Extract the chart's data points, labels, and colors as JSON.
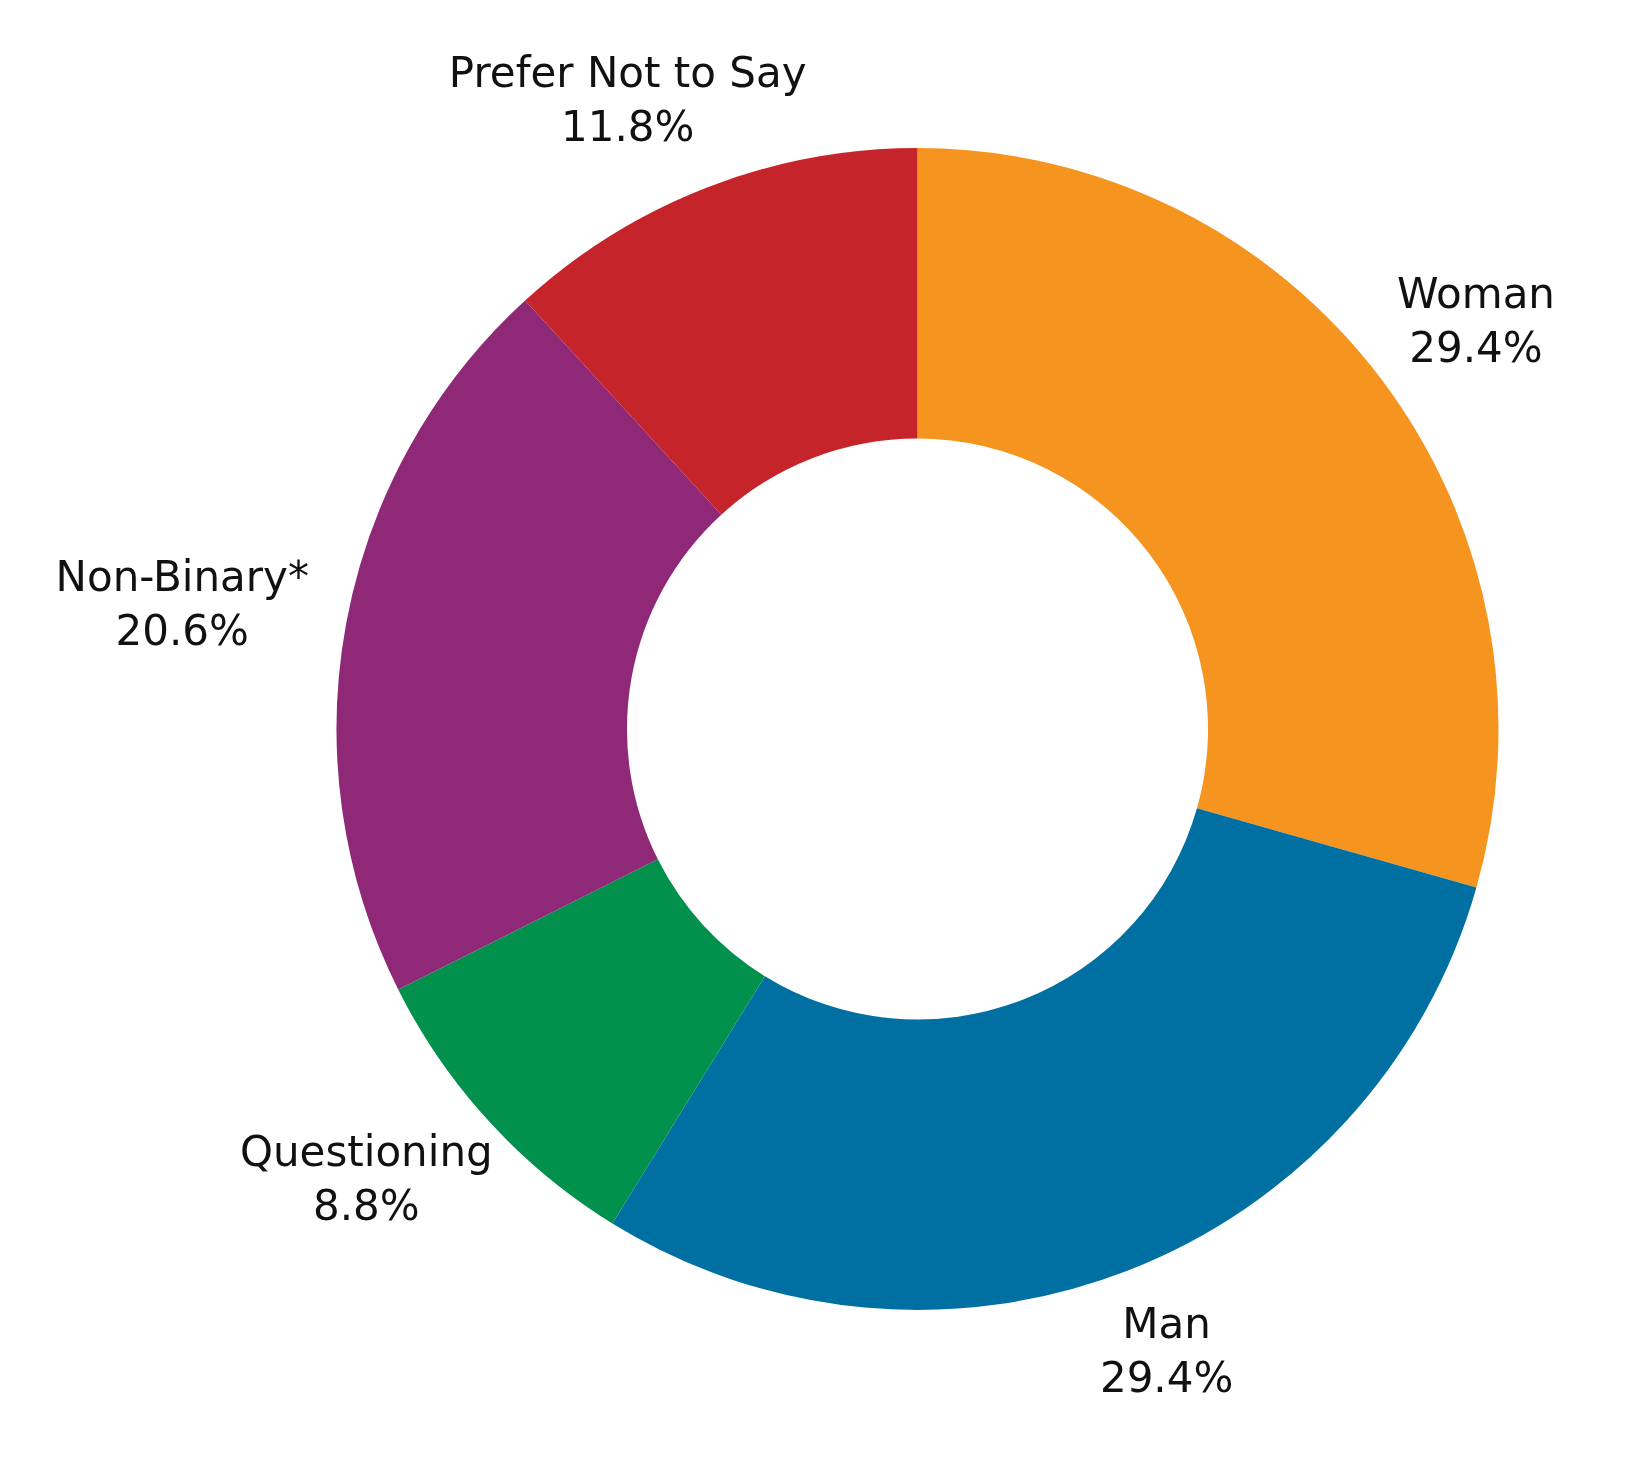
{
  "chart_data": {
    "type": "donut",
    "categories": [
      "Woman",
      "Man",
      "Questioning",
      "Non-Binary*",
      "Prefer Not to Say"
    ],
    "values": [
      29.4,
      29.4,
      8.8,
      20.6,
      11.8
    ],
    "colors": [
      "#f5951f",
      "#0070a3",
      "#02904d",
      "#8f2877",
      "#c6242b"
    ],
    "value_labels": [
      "29.4%",
      "29.4%",
      "8.8%",
      "20.6%",
      "11.8%"
    ],
    "legend": false
  }
}
